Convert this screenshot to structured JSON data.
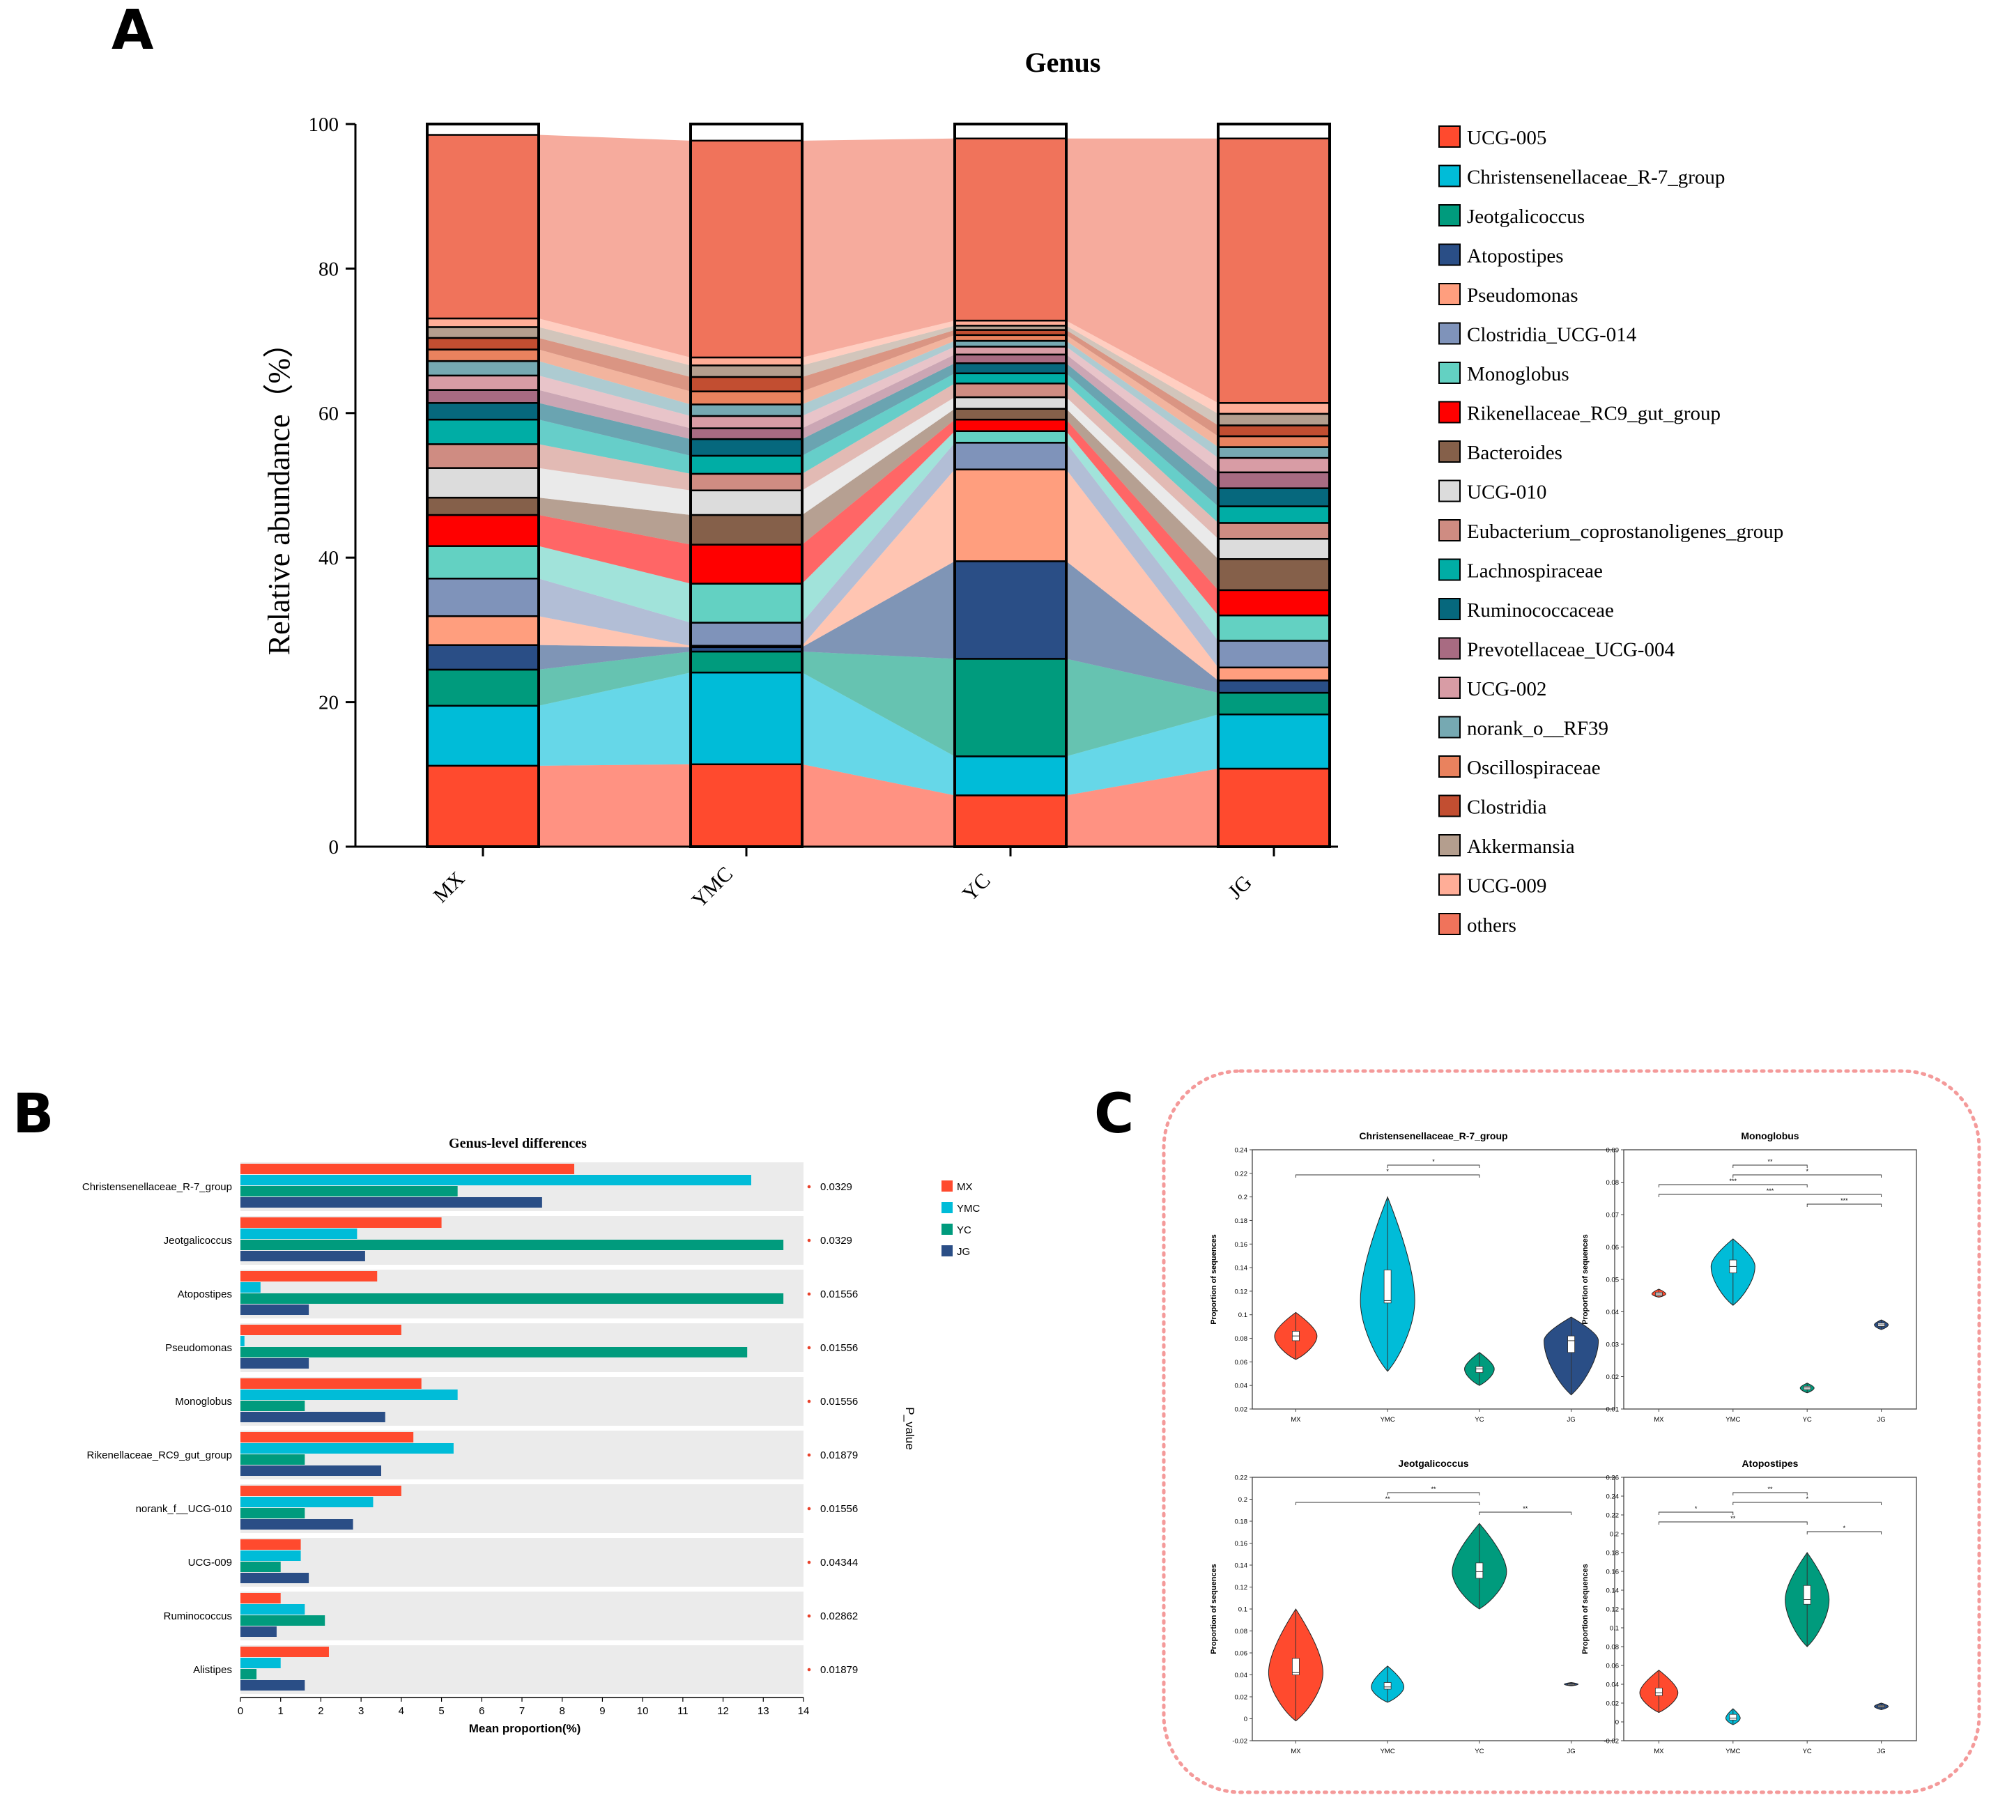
{
  "colors": {
    "genus": [
      "#FF4A2E",
      "#00BCD8",
      "#009B7D",
      "#2A4E86",
      "#FF9E7E",
      "#7F93BA",
      "#63D1C2",
      "#FF0000",
      "#85604A",
      "#DCDCDC",
      "#CF8C82",
      "#00ADA5",
      "#06687D",
      "#A86B82",
      "#D89CA5",
      "#76A9B2",
      "#E9825E",
      "#C24E31",
      "#B49E8E",
      "#FFAD97",
      "#F0735B"
    ],
    "groups": {
      "MX": "#FF4A2E",
      "YMC": "#00BCD8",
      "YC": "#009B7D",
      "JG": "#2A4E86"
    },
    "dotted_border": "#F49A9A",
    "row_bg": "#EBEBEB"
  },
  "panel_A": {
    "letter": "A",
    "chart_data": {
      "type": "bar",
      "stacked": true,
      "title": "Genus",
      "xlabel": "",
      "ylabel": "Relative abundance（%）",
      "ylim": [
        0,
        100
      ],
      "yticks": [
        "0",
        "20",
        "40",
        "60",
        "80",
        "100"
      ],
      "categories": [
        "MX",
        "YMC",
        "YC",
        "JG"
      ],
      "series": [
        {
          "name": "UCG-005",
          "values": [
            11.2,
            11.4,
            7.1,
            10.8
          ]
        },
        {
          "name": "Christensenellaceae_R-7_group",
          "values": [
            8.3,
            12.7,
            5.4,
            7.5
          ]
        },
        {
          "name": "Jeotgalicoccus",
          "values": [
            5.0,
            2.9,
            13.5,
            3.0
          ]
        },
        {
          "name": "Atopostipes",
          "values": [
            3.4,
            0.6,
            13.5,
            1.7
          ]
        },
        {
          "name": "Pseudomonas",
          "values": [
            4.0,
            0.2,
            12.7,
            1.8
          ]
        },
        {
          "name": "Clostridia_UCG-014",
          "values": [
            5.2,
            3.2,
            3.7,
            3.7
          ]
        },
        {
          "name": "Monoglobus",
          "values": [
            4.5,
            5.4,
            1.6,
            3.5
          ]
        },
        {
          "name": "Rikenellaceae_RC9_gut_group",
          "values": [
            4.3,
            5.4,
            1.6,
            3.5
          ]
        },
        {
          "name": "Bacteroides",
          "values": [
            2.4,
            4.1,
            1.5,
            4.3
          ]
        },
        {
          "name": "UCG-010",
          "values": [
            4.1,
            3.4,
            1.6,
            2.8
          ]
        },
        {
          "name": "Eubacterium_coprostanoligenes_group",
          "values": [
            3.3,
            2.3,
            1.9,
            2.2
          ]
        },
        {
          "name": "Lachnospiraceae",
          "values": [
            3.4,
            2.5,
            1.4,
            2.3
          ]
        },
        {
          "name": "Ruminococcaceae",
          "values": [
            2.3,
            2.3,
            1.4,
            2.5
          ]
        },
        {
          "name": "Prevotellaceae_UCG-004",
          "values": [
            1.8,
            1.5,
            1.2,
            2.2
          ]
        },
        {
          "name": "UCG-002",
          "values": [
            2.0,
            1.7,
            1.1,
            2.0
          ]
        },
        {
          "name": "norank_o__RF39",
          "values": [
            2.0,
            1.6,
            0.8,
            1.5
          ]
        },
        {
          "name": "Oscillospiraceae",
          "values": [
            1.6,
            1.8,
            0.8,
            1.5
          ]
        },
        {
          "name": "Clostridia",
          "values": [
            1.6,
            2.0,
            0.7,
            1.5
          ]
        },
        {
          "name": "Akkermansia",
          "values": [
            1.5,
            1.6,
            0.6,
            1.6
          ]
        },
        {
          "name": "UCG-009",
          "values": [
            1.2,
            1.1,
            0.7,
            1.5
          ]
        },
        {
          "name": "others",
          "values": [
            25.4,
            30.0,
            25.2,
            36.6
          ]
        }
      ]
    }
  },
  "panel_B": {
    "letter": "B",
    "chart_data": {
      "type": "bar",
      "orientation": "horizontal",
      "title": "Genus-level differences",
      "xlabel": "Mean proportion(%)",
      "p_label": "P_value",
      "xlim": [
        0,
        14
      ],
      "xticks": [
        "0",
        "1",
        "2",
        "3",
        "4",
        "5",
        "6",
        "7",
        "8",
        "9",
        "10",
        "11",
        "12",
        "13",
        "14"
      ],
      "categories": [
        "Christensenellaceae_R-7_group",
        "Jeotgalicoccus",
        "Atopostipes",
        "Pseudomonas",
        "Monoglobus",
        "Rikenellaceae_RC9_gut_group",
        "norank_f__UCG-010",
        "UCG-009",
        "Ruminococcus",
        "Alistipes"
      ],
      "p_values": [
        "0.0329",
        "0.0329",
        "0.01556",
        "0.01556",
        "0.01556",
        "0.01879",
        "0.01556",
        "0.04344",
        "0.02862",
        "0.01879"
      ],
      "series": [
        {
          "name": "MX",
          "values": [
            8.3,
            5.0,
            3.4,
            4.0,
            4.5,
            4.3,
            4.0,
            1.5,
            1.0,
            2.2
          ]
        },
        {
          "name": "YMC",
          "values": [
            12.7,
            2.9,
            0.5,
            0.1,
            5.4,
            5.3,
            3.3,
            1.5,
            1.6,
            1.0
          ]
        },
        {
          "name": "YC",
          "values": [
            5.4,
            13.5,
            13.5,
            12.6,
            1.6,
            1.6,
            1.6,
            1.0,
            2.1,
            0.4
          ]
        },
        {
          "name": "JG",
          "values": [
            7.5,
            3.1,
            1.7,
            1.7,
            3.6,
            3.5,
            2.8,
            1.7,
            0.9,
            1.6
          ]
        }
      ]
    }
  },
  "panel_C": {
    "letter": "C",
    "ylabel": "Proportion of sequences",
    "chart_data": [
      {
        "type": "violin",
        "title": "Christensenellaceae_R-7_group",
        "categories": [
          "MX",
          "YMC",
          "YC",
          "JG"
        ],
        "ylim": [
          0.02,
          0.24
        ],
        "yticks": [
          "0.02",
          "0.04",
          "0.06",
          "0.08",
          "0.1",
          "0.12",
          "0.14",
          "0.16",
          "0.18",
          "0.2",
          "0.22",
          "0.24"
        ],
        "groups": [
          {
            "min": 0.062,
            "max": 0.102,
            "q1": 0.078,
            "median": 0.082,
            "q3": 0.086
          },
          {
            "min": 0.052,
            "max": 0.2,
            "q1": 0.11,
            "median": 0.112,
            "q3": 0.138
          },
          {
            "min": 0.04,
            "max": 0.068,
            "q1": 0.051,
            "median": 0.054,
            "q3": 0.056
          },
          {
            "min": 0.032,
            "max": 0.098,
            "q1": 0.068,
            "median": 0.078,
            "q3": 0.082
          }
        ],
        "brackets": [
          {
            "from": "YMC",
            "to": "YC",
            "label": "*"
          },
          {
            "from": "MX",
            "to": "YC",
            "label": "*"
          }
        ]
      },
      {
        "type": "violin",
        "title": "Monoglobus",
        "categories": [
          "MX",
          "YMC",
          "YC",
          "JG"
        ],
        "ylim": [
          0.01,
          0.09
        ],
        "yticks": [
          "0.01",
          "0.02",
          "0.03",
          "0.04",
          "0.05",
          "0.06",
          "0.07",
          "0.08",
          "0.09"
        ],
        "groups": [
          {
            "min": 0.0445,
            "max": 0.047,
            "q1": 0.045,
            "median": 0.0455,
            "q3": 0.046
          },
          {
            "min": 0.042,
            "max": 0.0625,
            "q1": 0.052,
            "median": 0.054,
            "q3": 0.056
          },
          {
            "min": 0.015,
            "max": 0.018,
            "q1": 0.016,
            "median": 0.0165,
            "q3": 0.017
          },
          {
            "min": 0.0345,
            "max": 0.0375,
            "q1": 0.0355,
            "median": 0.036,
            "q3": 0.0365
          }
        ],
        "brackets": [
          {
            "from": "YMC",
            "to": "YC",
            "label": "**"
          },
          {
            "from": "YMC",
            "to": "JG",
            "label": "*"
          },
          {
            "from": "MX",
            "to": "YC",
            "label": "***"
          },
          {
            "from": "MX",
            "to": "JG",
            "label": "***"
          },
          {
            "from": "YC",
            "to": "JG",
            "label": "***"
          }
        ]
      },
      {
        "type": "violin",
        "title": "Jeotgalicoccus",
        "categories": [
          "MX",
          "YMC",
          "YC",
          "JG"
        ],
        "ylim": [
          -0.02,
          0.22
        ],
        "yticks": [
          "-0.02",
          "0",
          "0.02",
          "0.04",
          "0.06",
          "0.08",
          "0.1",
          "0.12",
          "0.14",
          "0.16",
          "0.18",
          "0.2",
          "0.22"
        ],
        "groups": [
          {
            "min": -0.002,
            "max": 0.1,
            "q1": 0.04,
            "median": 0.042,
            "q3": 0.055
          },
          {
            "min": 0.015,
            "max": 0.048,
            "q1": 0.027,
            "median": 0.029,
            "q3": 0.033
          },
          {
            "min": 0.1,
            "max": 0.178,
            "q1": 0.128,
            "median": 0.134,
            "q3": 0.142
          },
          {
            "min": 0.03,
            "max": 0.033,
            "q1": 0.031,
            "median": 0.0315,
            "q3": 0.032
          }
        ],
        "brackets": [
          {
            "from": "YMC",
            "to": "YC",
            "label": "**"
          },
          {
            "from": "MX",
            "to": "YC",
            "label": "**"
          },
          {
            "from": "YC",
            "to": "JG",
            "label": "**"
          }
        ]
      },
      {
        "type": "violin",
        "title": "Atopostipes",
        "categories": [
          "MX",
          "YMC",
          "YC",
          "JG"
        ],
        "ylim": [
          -0.02,
          0.26
        ],
        "yticks": [
          "-0.02",
          "0",
          "0.02",
          "0.04",
          "0.06",
          "0.08",
          "0.1",
          "0.12",
          "0.14",
          "0.16",
          "0.18",
          "0.2",
          "0.22",
          "0.24",
          "0.26"
        ],
        "groups": [
          {
            "min": 0.01,
            "max": 0.055,
            "q1": 0.028,
            "median": 0.031,
            "q3": 0.036
          },
          {
            "min": -0.003,
            "max": 0.014,
            "q1": 0.002,
            "median": 0.004,
            "q3": 0.008
          },
          {
            "min": 0.08,
            "max": 0.18,
            "q1": 0.125,
            "median": 0.13,
            "q3": 0.145
          },
          {
            "min": 0.013,
            "max": 0.02,
            "q1": 0.0155,
            "median": 0.0165,
            "q3": 0.0175
          }
        ],
        "brackets": [
          {
            "from": "YMC",
            "to": "YC",
            "label": "**"
          },
          {
            "from": "YMC",
            "to": "JG",
            "label": "*"
          },
          {
            "from": "MX",
            "to": "YMC",
            "label": "*"
          },
          {
            "from": "MX",
            "to": "YC",
            "label": "**"
          },
          {
            "from": "YC",
            "to": "JG",
            "label": "*"
          }
        ]
      }
    ]
  }
}
